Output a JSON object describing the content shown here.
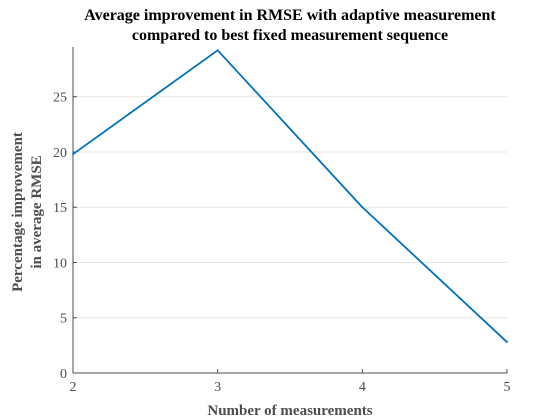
{
  "chart_data": {
    "type": "line",
    "title_lines": [
      "Average improvement in RMSE with adaptive measurement",
      "compared to best fixed measurement sequence"
    ],
    "xlabel": "Number of measurements",
    "ylabel_lines": [
      "Percentage improvement",
      "in average RMSE"
    ],
    "x": [
      2,
      3,
      4,
      5
    ],
    "series": [
      {
        "values": [
          19.8,
          29.2,
          15.0,
          2.8
        ],
        "color": "#0072bd"
      }
    ],
    "xlim": [
      2,
      5
    ],
    "ylim": [
      0,
      29.5
    ],
    "xticks": [
      2,
      3,
      4,
      5
    ],
    "yticks": [
      0,
      5,
      10,
      15,
      20,
      25
    ],
    "grid": "horizontal",
    "grid_color": "#e6e6e6",
    "axis_color": "#4d4d4d"
  }
}
